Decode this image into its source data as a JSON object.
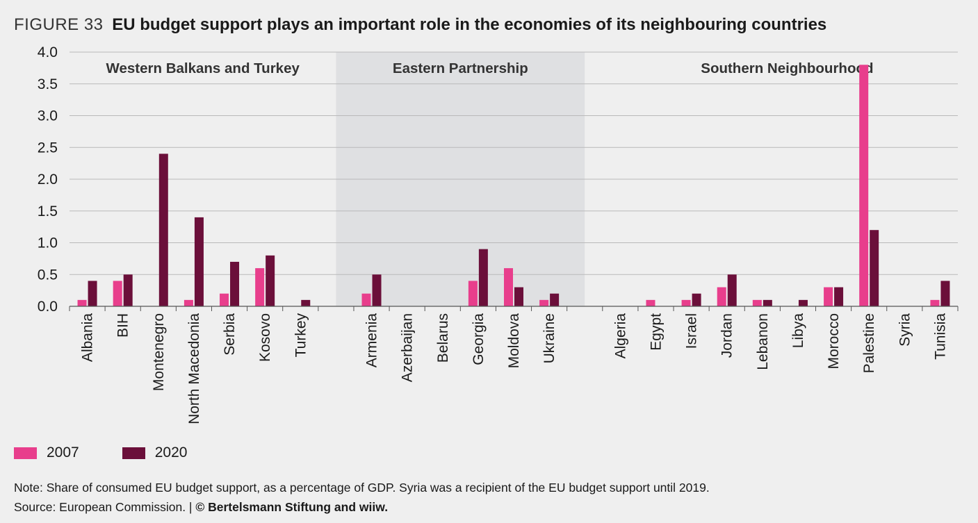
{
  "header": {
    "figure_label": "FIGURE 33",
    "title": "EU budget support plays an important role in the economies of its neighbouring countries"
  },
  "colors": {
    "s2007": "#e83e8c",
    "s2020": "#6b0f3a",
    "band": "#dfe0e2",
    "grid": "#b9b9b9"
  },
  "chart_data": {
    "type": "bar",
    "title": "EU budget support plays an important role in the economies of its neighbouring countries",
    "xlabel": "",
    "ylabel": "",
    "ylim": [
      0,
      4.0
    ],
    "yticks": [
      "0.0",
      "0.5",
      "1.0",
      "1.5",
      "2.0",
      "2.5",
      "3.0",
      "3.5",
      "4.0"
    ],
    "grid": true,
    "legend_position": "bottom-left",
    "groups": [
      {
        "name": "Western Balkans and Turkey",
        "shaded": false,
        "categories": [
          "Albania",
          "BIH",
          "Montenegro",
          "North Macedonia",
          "Serbia",
          "Kosovo",
          "Turkey"
        ]
      },
      {
        "name": "Eastern Partnership",
        "shaded": true,
        "categories": [
          "Armenia",
          "Azerbaijan",
          "Belarus",
          "Georgia",
          "Moldova",
          "Ukraine"
        ]
      },
      {
        "name": "Southern Neighbourhood",
        "shaded": false,
        "categories": [
          "Algeria",
          "Egypt",
          "Israel",
          "Jordan",
          "Lebanon",
          "Libya",
          "Morocco",
          "Palestine",
          "Syria",
          "Tunisia"
        ]
      }
    ],
    "categories": [
      "Albania",
      "BIH",
      "Montenegro",
      "North Macedonia",
      "Serbia",
      "Kosovo",
      "Turkey",
      "Armenia",
      "Azerbaijan",
      "Belarus",
      "Georgia",
      "Moldova",
      "Ukraine",
      "Algeria",
      "Egypt",
      "Israel",
      "Jordan",
      "Lebanon",
      "Libya",
      "Morocco",
      "Palestine",
      "Syria",
      "Tunisia"
    ],
    "series": [
      {
        "name": "2007",
        "values": [
          0.1,
          0.4,
          0.0,
          0.1,
          0.2,
          0.6,
          0.0,
          0.2,
          0.0,
          0.0,
          0.4,
          0.6,
          0.1,
          0.0,
          0.1,
          0.1,
          0.3,
          0.1,
          0.0,
          0.3,
          3.8,
          0.0,
          0.1
        ]
      },
      {
        "name": "2020",
        "values": [
          0.4,
          0.5,
          2.4,
          1.4,
          0.7,
          0.8,
          0.1,
          0.5,
          0.0,
          0.0,
          0.9,
          0.3,
          0.2,
          0.0,
          0.0,
          0.2,
          0.5,
          0.1,
          0.1,
          0.3,
          1.2,
          0.0,
          0.4
        ]
      }
    ]
  },
  "legend": {
    "label_2007": "2007",
    "label_2020": "2020"
  },
  "footer": {
    "note": "Note: Share of consumed EU budget support, as a percentage of GDP. Syria was a recipient of the EU budget support until 2019.",
    "source_prefix": "Source: European Commission.  |  ",
    "copyright": "© Bertelsmann Stiftung and wiiw."
  }
}
